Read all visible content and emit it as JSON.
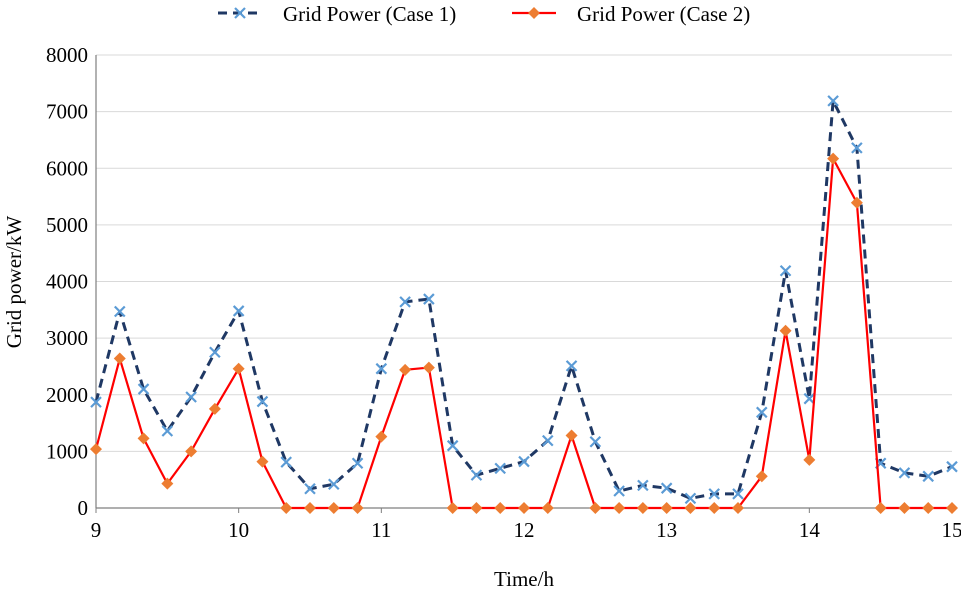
{
  "chart_data": {
    "type": "line",
    "title": "",
    "xlabel": "Time/h",
    "ylabel": "Grid power/kW",
    "xlim": [
      9,
      15
    ],
    "ylim": [
      0,
      8000
    ],
    "x_ticks": [
      "9",
      "10",
      "11",
      "12",
      "13",
      "14",
      "15"
    ],
    "y_ticks": [
      "0",
      "1000",
      "2000",
      "3000",
      "4000",
      "5000",
      "6000",
      "7000",
      "8000"
    ],
    "grid": "horizontal",
    "legend_position": "top",
    "x": [
      9.0,
      9.1667,
      9.3333,
      9.5,
      9.6667,
      9.8333,
      10.0,
      10.1667,
      10.3333,
      10.5,
      10.6667,
      10.8333,
      11.0,
      11.1667,
      11.3333,
      11.5,
      11.6667,
      11.8333,
      12.0,
      12.1667,
      12.3333,
      12.5,
      12.6667,
      12.8333,
      13.0,
      13.1667,
      13.3333,
      13.5,
      13.6667,
      13.8333,
      14.0,
      14.1667,
      14.3333,
      14.5,
      14.6667,
      14.8333,
      15.0
    ],
    "series": [
      {
        "name": "Grid Power (Case 1)",
        "color": "#1f3864",
        "marker_color": "#5b9bd5",
        "style": "dashed",
        "marker": "x",
        "values": [
          1870,
          3470,
          2100,
          1360,
          1960,
          2750,
          3480,
          1880,
          810,
          340,
          420,
          790,
          2460,
          3640,
          3690,
          1100,
          580,
          700,
          820,
          1190,
          2510,
          1170,
          300,
          400,
          350,
          170,
          250,
          250,
          1690,
          4190,
          1930,
          7190,
          6360,
          790,
          620,
          560,
          730
        ]
      },
      {
        "name": "Grid Power (Case 2)",
        "color": "#ff0000",
        "marker_color": "#ed7d31",
        "style": "solid",
        "marker": "diamond",
        "values": [
          1040,
          2640,
          1230,
          430,
          1000,
          1750,
          2460,
          820,
          0,
          0,
          0,
          0,
          1260,
          2440,
          2480,
          0,
          0,
          0,
          0,
          0,
          1280,
          0,
          0,
          0,
          0,
          0,
          0,
          0,
          560,
          3130,
          850,
          6170,
          5390,
          0,
          0,
          0,
          0
        ]
      }
    ]
  }
}
